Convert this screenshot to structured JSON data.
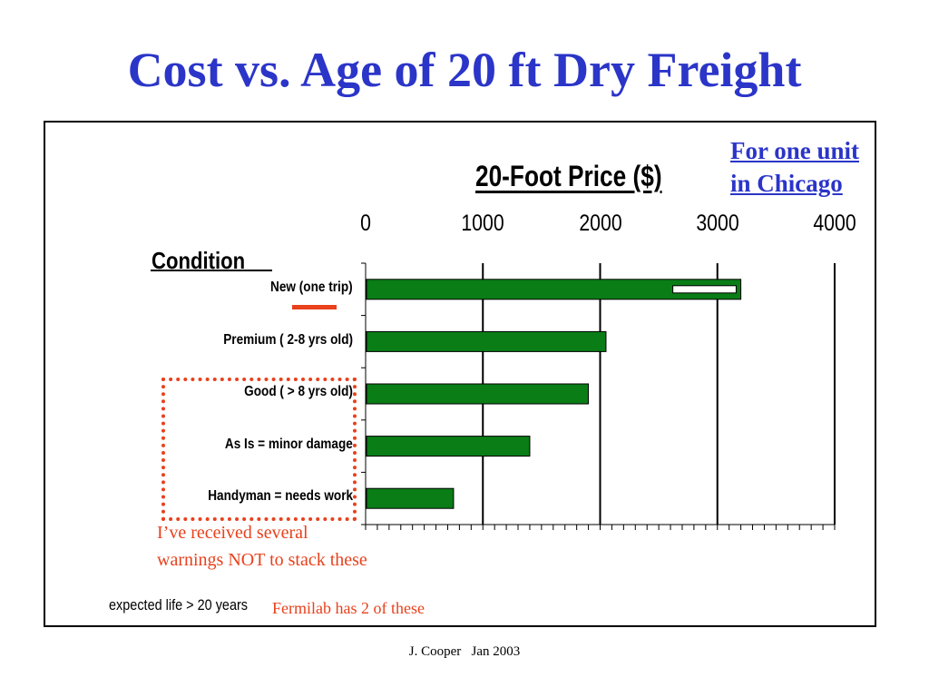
{
  "slide": {
    "title": "Cost vs. Age of 20 ft Dry Freight",
    "footer": "J. Cooper   Jan 2003"
  },
  "notes": {
    "unit_line1": "For one unit",
    "unit_line2": "in Chicago",
    "warning_line1": "I’ve received several",
    "warning_line2": "warnings NOT to stack these",
    "life": "expected life > 20 years",
    "fermilab": "Fermilab has 2 of these"
  },
  "colors": {
    "title": "#2b35c8",
    "bar": "#0a7d17",
    "annotation": "#e8411c"
  },
  "chart_data": {
    "type": "bar",
    "orientation": "horizontal",
    "title": "20-Foot Price ($)",
    "ylabel": "Condition",
    "categories": [
      "New (one trip)",
      "Premium ( 2-8 yrs old)",
      "Good ( > 8 yrs old)",
      "As Is = minor damage",
      "Handyman = needs work"
    ],
    "values": [
      3200,
      2050,
      1900,
      1400,
      750
    ],
    "range_low": [
      2620,
      null,
      null,
      null,
      null
    ],
    "range_high": [
      3160,
      null,
      null,
      null,
      null
    ],
    "xlim": [
      0,
      4000
    ],
    "x_ticks": [
      0,
      1000,
      2000,
      3000,
      4000
    ],
    "tick_labels": [
      "0",
      "1000",
      "2000",
      "3000",
      "4000"
    ],
    "grid": true
  }
}
